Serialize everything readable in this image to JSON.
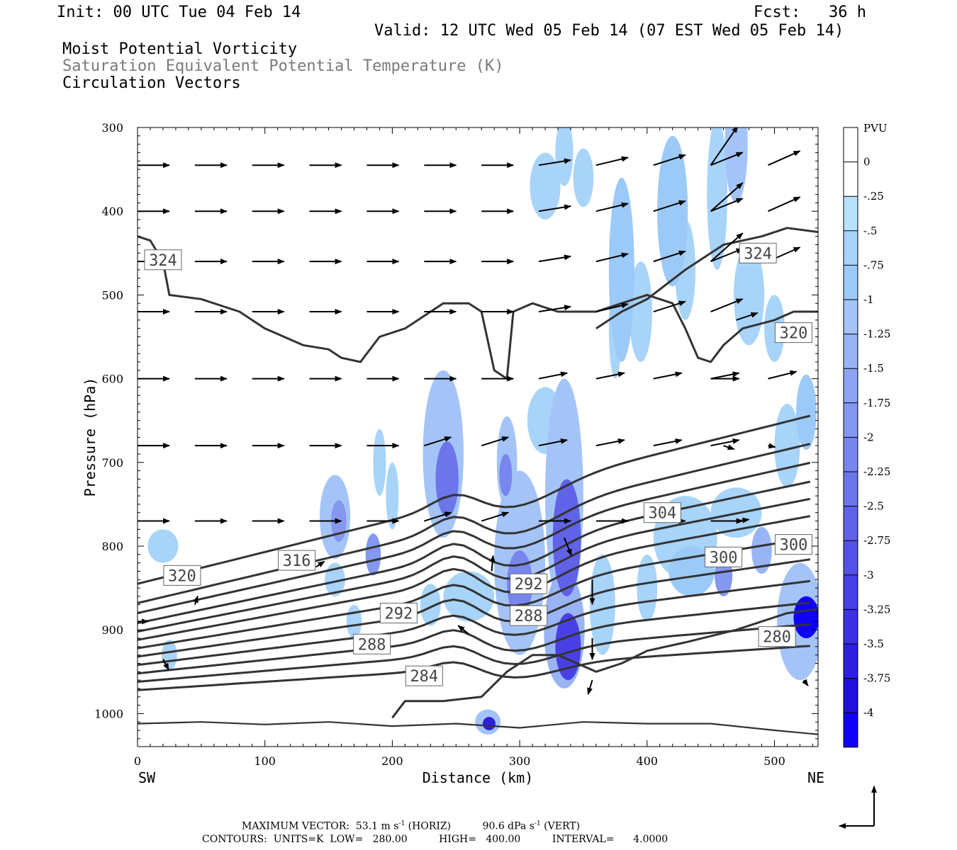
{
  "header": {
    "init": "Init: 00 UTC Tue 04 Feb 14",
    "fcst": "Fcst:   36 h",
    "valid": "Valid: 12 UTC Wed 05 Feb 14 (07 EST Wed 05 Feb 14)",
    "field1": "Moist Potential Vorticity",
    "field2": "Saturation Equivalent Potential Temperature (K)",
    "field3": "Circulation Vectors"
  },
  "footer": {
    "max_vector_prefix": "MAXIMUM VECTOR:  53.1 m s",
    "max_vector_exp1": "-1",
    "max_vector_mid": " (HORIZ)          90.6 dPa s",
    "max_vector_exp2": "-1",
    "max_vector_suffix": " (VERT)",
    "contours": "CONTOURS:  UNITS=K  LOW=   280.00          HIGH=   400.00          INTERVAL=      4.0000"
  },
  "chart_data": {
    "type": "heatmap",
    "title": "Moist Potential Vorticity",
    "xlabel": "Distance (km)",
    "ylabel": "Pressure (hPa)",
    "xlim": [
      0,
      535
    ],
    "ylim": [
      1040,
      300
    ],
    "x_ticks": [
      0,
      100,
      200,
      300,
      400,
      500
    ],
    "y_ticks": [
      300,
      400,
      500,
      600,
      700,
      800,
      900,
      1000
    ],
    "x_end_labels": {
      "left": "SW",
      "right": "NE"
    },
    "colorbar": {
      "unit": "PVU",
      "labels": [
        "0",
        "-.25",
        "-.5",
        "-.75",
        "-1",
        "-1.25",
        "-1.5",
        "-1.75",
        "-2",
        "-2.25",
        "-2.5",
        "-2.75",
        "-3",
        "-3.25",
        "-3.5",
        "-3.75",
        "-4"
      ],
      "colors": [
        "#ffffff",
        "#ffffff",
        "#b8e2fc",
        "#a8d4fa",
        "#9ccaf8",
        "#a4c4f8",
        "#98b4f4",
        "#8ca4f2",
        "#8498f0",
        "#7886ee",
        "#6c76ea",
        "#6062e8",
        "#5452e6",
        "#4840e4",
        "#3c30e2",
        "#2e1ee0",
        "#200ede",
        "#1000fa"
      ]
    },
    "theta_es_contour_labels": [
      {
        "value": "324",
        "x": 20,
        "p": 458
      },
      {
        "value": "324",
        "x": 487,
        "p": 450
      },
      {
        "value": "320",
        "x": 35,
        "p": 835
      },
      {
        "value": "320",
        "x": 515,
        "p": 545
      },
      {
        "value": "316",
        "x": 125,
        "p": 817
      },
      {
        "value": "304",
        "x": 412,
        "p": 760
      },
      {
        "value": "300",
        "x": 460,
        "p": 813
      },
      {
        "value": "300",
        "x": 515,
        "p": 798
      },
      {
        "value": "292",
        "x": 205,
        "p": 880
      },
      {
        "value": "292",
        "x": 307,
        "p": 845
      },
      {
        "value": "288",
        "x": 184,
        "p": 917
      },
      {
        "value": "288",
        "x": 307,
        "p": 883
      },
      {
        "value": "284",
        "x": 225,
        "p": 955
      },
      {
        "value": "280",
        "x": 502,
        "p": 908
      }
    ],
    "pv_regions": [
      {
        "x": 240,
        "p": 720,
        "pv": -2.5
      },
      {
        "x": 290,
        "p": 700,
        "pv": -2.25
      },
      {
        "x": 300,
        "p": 840,
        "pv": -2.0
      },
      {
        "x": 335,
        "p": 780,
        "pv": -2.75
      },
      {
        "x": 335,
        "p": 920,
        "pv": -3.0
      },
      {
        "x": 155,
        "p": 765,
        "pv": -1.75
      },
      {
        "x": 185,
        "p": 810,
        "pv": -2.0
      },
      {
        "x": 275,
        "p": 1010,
        "pv": -3.5
      },
      {
        "x": 460,
        "p": 835,
        "pv": -2.0
      },
      {
        "x": 490,
        "p": 805,
        "pv": -1.5
      },
      {
        "x": 525,
        "p": 890,
        "pv": -4.0
      },
      {
        "x": 410,
        "p": 470,
        "pv": -1.25
      },
      {
        "x": 470,
        "p": 320,
        "pv": -1.0
      }
    ]
  }
}
